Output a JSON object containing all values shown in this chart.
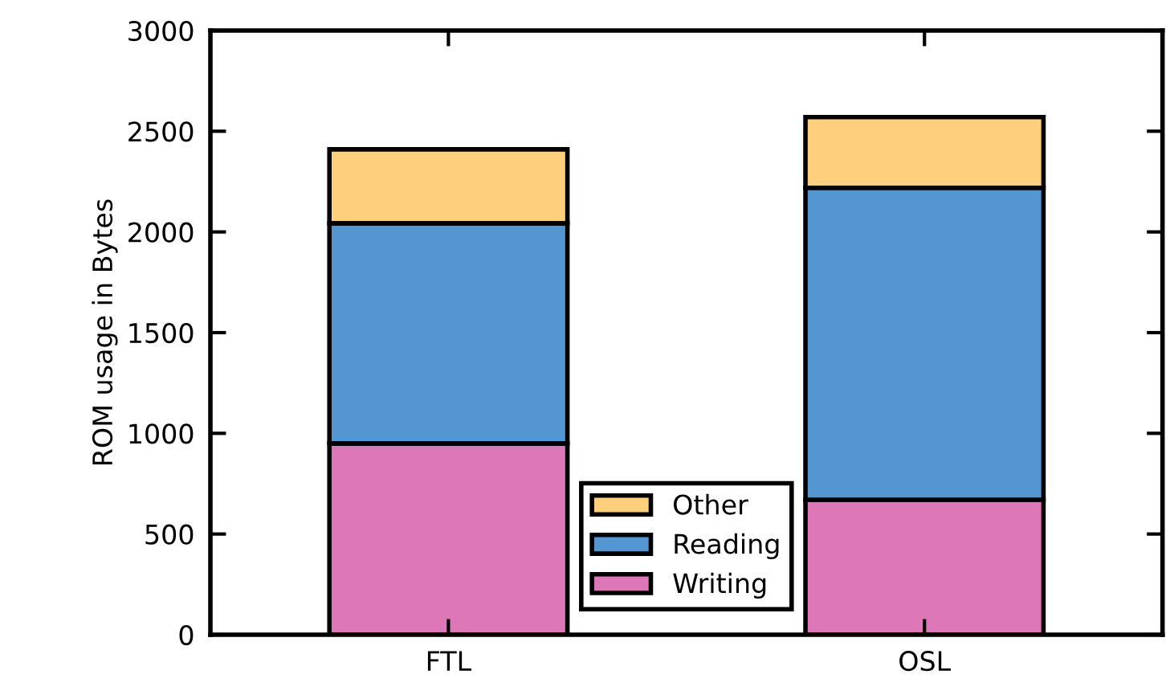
{
  "chart_data": {
    "type": "bar",
    "stacked": true,
    "categories": [
      "FTL",
      "OSL"
    ],
    "ylabel": "ROM usage in Bytes",
    "ylim": [
      0,
      3000
    ],
    "yticks": [
      0,
      500,
      1000,
      1500,
      2000,
      2500,
      3000
    ],
    "grid": false,
    "legend": "bottom",
    "series": [
      {
        "name": "Writing",
        "color": "#de77b7",
        "values": [
          950,
          670
        ]
      },
      {
        "name": "Reading",
        "color": "#5496cf",
        "values": [
          1093,
          1549
        ]
      },
      {
        "name": "Other",
        "color": "#fed07d",
        "values": [
          367,
          351
        ]
      }
    ]
  }
}
